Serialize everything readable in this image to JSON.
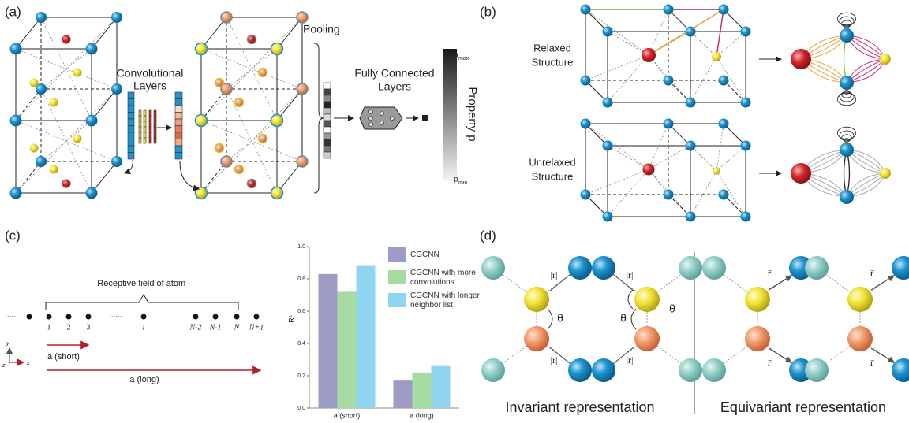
{
  "panels": {
    "a": "(a)",
    "b": "(b)",
    "c": "(c)",
    "d": "(d)"
  },
  "panel_a": {
    "conv_label": [
      "Convolutional",
      "Layers"
    ],
    "pooling": "Pooling",
    "fc_label": [
      "Fully Connected",
      "Layers"
    ],
    "property": "Property p",
    "p_max": {
      "symbol": "p",
      "sub": "max"
    },
    "p_min": {
      "symbol": "p",
      "sub": "min"
    }
  },
  "panel_b": {
    "relaxed": [
      "Relaxed",
      "Structure"
    ],
    "unrelaxed": [
      "Unrelaxed",
      "Structure"
    ]
  },
  "panel_c": {
    "receptive_field": "Receptive field of atom i",
    "ellipses": [
      "......",
      "......"
    ],
    "indices": [
      "1",
      "2",
      "3",
      "i",
      "N-2",
      "N-1",
      "N",
      "N+1"
    ],
    "axes": {
      "y": "y",
      "x": "x",
      "z": "z"
    },
    "short": "a (short)",
    "long": "a (long)"
  },
  "chart_data": {
    "type": "bar",
    "ylabel": "R²",
    "categories": [
      "a (short)",
      "a (long)"
    ],
    "series": [
      {
        "name": "CGCNN",
        "color": "#9c9cc6",
        "values": [
          0.83,
          0.17
        ]
      },
      {
        "name": "CGCNN with more convolutions",
        "color": "#a6dca2",
        "values": [
          0.72,
          0.22
        ]
      },
      {
        "name": "CGCNN with longer neighbor list",
        "color": "#8fd4f0",
        "values": [
          0.88,
          0.26
        ]
      }
    ],
    "ylim": [
      0,
      1.0
    ],
    "yticks": [
      {
        "value": 0,
        "label": "0.0"
      },
      0.2,
      0.4,
      0.6,
      0.8,
      {
        "value": 1.0,
        "label": "1.0"
      }
    ],
    "legend": "top-right"
  },
  "panel_d": {
    "theta": "θ",
    "r_abs": "|r̄|",
    "r_vec": "r̄",
    "invariant": "Invariant representation",
    "equivariant": "Equivariant representation"
  }
}
